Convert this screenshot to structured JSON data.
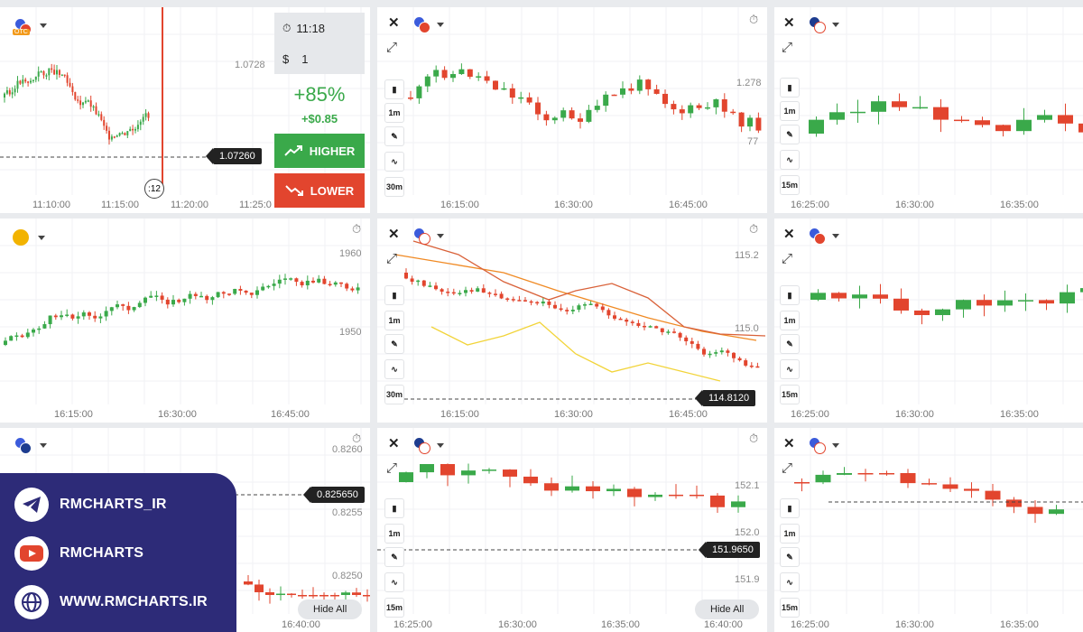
{
  "colors": {
    "up": "#3aa94a",
    "down": "#e2452e",
    "page_bg": "#e9ebee",
    "panel_bg": "#ffffff",
    "promo_bg": "#2d2b78"
  },
  "panels": [
    {
      "id": "p1",
      "flag": [
        "#3b5bdb",
        "#e2452e"
      ],
      "flag_badge": "OTC",
      "x_ticks": [
        "11:10:00",
        "11:15:00",
        "11:20:00",
        "11:25:0"
      ],
      "y_ticks": [
        "1.0728"
      ],
      "price_tag": "1.07260",
      "expiry_badge": ":12",
      "trade": {
        "time": "11:18",
        "amount": "1",
        "currency": "$",
        "payout_percent": "+85%",
        "payout_profit": "+$0.85",
        "higher_label": "HIGHER",
        "lower_label": "LOWER"
      }
    },
    {
      "id": "p2",
      "flag": [
        "#3b5bdb",
        "#e2452e"
      ],
      "tools": [
        "1m",
        "30m"
      ],
      "x_ticks": [
        "16:15:00",
        "16:30:00",
        "16:45:00"
      ],
      "y_ticks": [
        "1.278",
        "77"
      ]
    },
    {
      "id": "p3",
      "flag": [
        "#1d3c8f",
        "#ffffff"
      ],
      "tools": [
        "1m",
        "15m"
      ],
      "x_ticks": [
        "16:25:00",
        "16:30:00",
        "16:35:00"
      ],
      "y_ticks": []
    },
    {
      "id": "p4",
      "flag": [
        "#f2b300",
        "#f2b300"
      ],
      "x_ticks": [
        "16:15:00",
        "16:30:00",
        "16:45:00"
      ],
      "y_ticks": [
        "1960",
        "1950"
      ]
    },
    {
      "id": "p5",
      "flag": [
        "#3b5bdb",
        "#ffffff"
      ],
      "tools": [
        "1m",
        "30m"
      ],
      "x_ticks": [
        "16:15:00",
        "16:30:00",
        "16:45:00"
      ],
      "y_ticks": [
        "115.2",
        "115.0"
      ],
      "price_tag": "114.8120"
    },
    {
      "id": "p6",
      "flag": [
        "#3b5bdb",
        "#e2452e"
      ],
      "tools": [
        "1m",
        "15m"
      ],
      "x_ticks": [
        "16:25:00",
        "16:30:00",
        "16:35:00"
      ],
      "y_ticks": []
    },
    {
      "id": "p7",
      "flag": [
        "#3b5bdb",
        "#1d3c8f"
      ],
      "x_ticks": [
        "16:40:00"
      ],
      "y_ticks": [
        "0.8260",
        "0.8255",
        "0.8250"
      ],
      "price_tag": "0.825650",
      "hide_all": "Hide All"
    },
    {
      "id": "p8",
      "flag": [
        "#1d3c8f",
        "#ffffff"
      ],
      "tools": [
        "1m",
        "15m"
      ],
      "x_ticks": [
        "16:25:00",
        "16:30:00",
        "16:35:00",
        "16:40:00"
      ],
      "y_ticks": [
        "152.1",
        "152.0",
        "151.9"
      ],
      "price_tag": "151.9650",
      "hide_all": "Hide All"
    },
    {
      "id": "p9",
      "flag": [
        "#3b5bdb",
        "#ffffff"
      ],
      "tools": [
        "1m",
        "15m"
      ],
      "x_ticks": [
        "16:25:00",
        "16:30:00",
        "16:35:00"
      ],
      "y_ticks": []
    }
  ],
  "promo": {
    "telegram": "RMCHARTS_IR",
    "youtube": "RMCHARTS",
    "website": "WWW.RMCHARTS.IR"
  }
}
